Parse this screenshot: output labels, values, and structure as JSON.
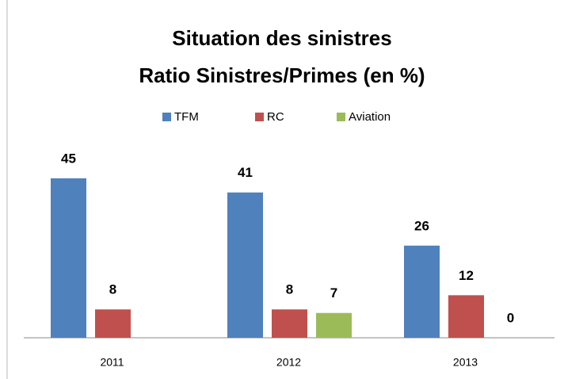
{
  "chart_data": {
    "type": "bar",
    "title": "Situation des sinistres",
    "subtitle": "Ratio Sinistres/Primes (en %)",
    "categories": [
      "2011",
      "2012",
      "2013"
    ],
    "series": [
      {
        "name": "TFM",
        "color": "#4f81bd",
        "values": [
          45,
          41,
          26
        ]
      },
      {
        "name": "RC",
        "color": "#c0504d",
        "values": [
          8,
          8,
          12
        ]
      },
      {
        "name": "Aviation",
        "color": "#9bbb59",
        "values": [
          null,
          7,
          0
        ]
      }
    ],
    "legend": "top"
  }
}
